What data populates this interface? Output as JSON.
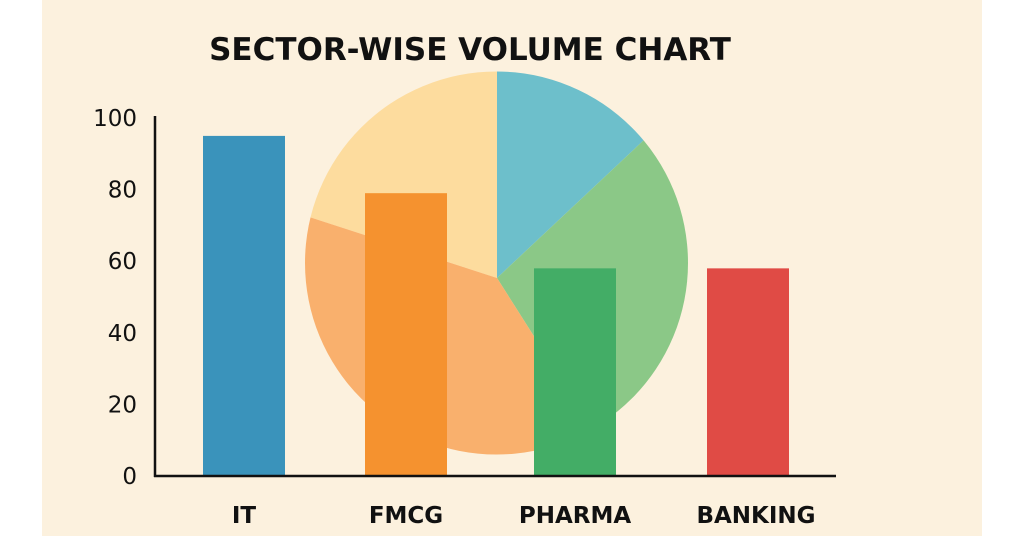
{
  "chart_data": {
    "type": "bar",
    "title": "SECTOR-WISE VOLUME CHART",
    "xlabel": "",
    "ylabel": "",
    "ylim": [
      0,
      100
    ],
    "yticks": [
      "0",
      "20",
      "40",
      "60",
      "80",
      "100"
    ],
    "categories": [
      "IT",
      "FMCG",
      "PHARMA",
      "BANKING"
    ],
    "values": [
      95,
      79,
      58,
      58
    ],
    "bar_colors": [
      "#3A93BB",
      "#F5922F",
      "#43AD66",
      "#E04B45"
    ],
    "grid": false,
    "background_pie": {
      "type": "pie",
      "shares_percent": [
        20,
        13,
        28,
        39
      ],
      "colors": [
        "#FDDC9E",
        "#6DBFCB",
        "#8BC887",
        "#F9B06D"
      ]
    }
  }
}
